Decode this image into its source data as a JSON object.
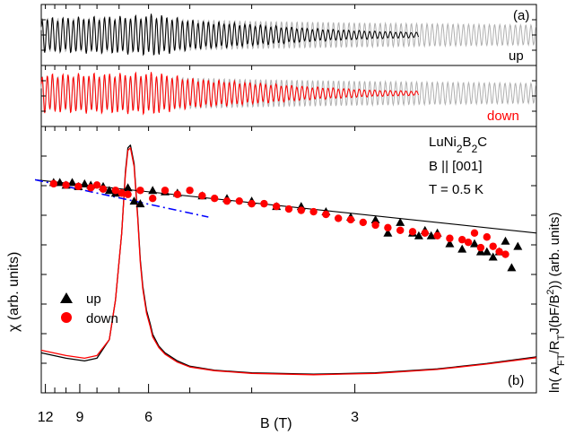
{
  "panel_a_label": "(a)",
  "panel_b_label": "(b)",
  "label_up": "up",
  "label_down": "down",
  "xlabel": "B (T)",
  "ylabel_left": "χ (arb. units)",
  "ylabel_right_html": "ln( A<tspan baseline-shift='sub' font-size='11'>FT</tspan>/R<tspan baseline-shift='sub' font-size='11'>T</tspan>J(bF/B<tspan baseline-shift='super' font-size='11'>2</tspan>)) (arb. units)",
  "annotation_material_html": "LuNi<tspan baseline-shift='sub' font-size='12'>2</tspan>B<tspan baseline-shift='sub' font-size='12'>2</tspan>C",
  "annotation_field": "B || [001]",
  "annotation_temp": "T = 0.5 K",
  "legend": [
    {
      "label": "up",
      "marker": "triangle",
      "color": "#000000"
    },
    {
      "label": "down",
      "marker": "circle",
      "color": "#ff0000"
    }
  ],
  "colors": {
    "up": "#000000",
    "down": "#ff0000",
    "reference": "#b0b0b0",
    "fit_dashdot": "#0000ff"
  },
  "chart_data": [
    {
      "type": "line",
      "panel": "a",
      "description_tag": "oscillation up",
      "series": [
        {
          "name": "up",
          "x_invB_start": 0.08,
          "x_invB_end": 0.385,
          "envelope": [
            [
              0.08,
              0.8
            ],
            [
              0.16,
              0.9
            ],
            [
              0.17,
              1.0
            ],
            [
              0.2,
              0.7
            ],
            [
              0.25,
              0.5
            ],
            [
              0.3,
              0.3
            ],
            [
              0.35,
              0.18
            ],
            [
              0.385,
              0.12
            ]
          ]
        },
        {
          "name": "reference",
          "x_invB_start": 0.08,
          "x_invB_end": 0.48,
          "envelope": [
            [
              0.08,
              0.85
            ],
            [
              0.16,
              0.85
            ],
            [
              0.25,
              0.7
            ],
            [
              0.35,
              0.6
            ],
            [
              0.48,
              0.5
            ]
          ]
        }
      ]
    },
    {
      "type": "line",
      "panel": "a-down",
      "series": [
        {
          "name": "down",
          "x_invB_start": 0.08,
          "x_invB_end": 0.385,
          "envelope": [
            [
              0.08,
              0.9
            ],
            [
              0.16,
              0.95
            ],
            [
              0.17,
              1.0
            ],
            [
              0.2,
              0.7
            ],
            [
              0.25,
              0.5
            ],
            [
              0.3,
              0.3
            ],
            [
              0.35,
              0.15
            ],
            [
              0.385,
              0.1
            ]
          ]
        },
        {
          "name": "reference",
          "x_invB_start": 0.08,
          "x_invB_end": 0.48,
          "envelope": [
            [
              0.08,
              0.85
            ],
            [
              0.16,
              0.85
            ],
            [
              0.25,
              0.7
            ],
            [
              0.35,
              0.6
            ],
            [
              0.48,
              0.5
            ]
          ]
        }
      ]
    },
    {
      "type": "line",
      "panel": "b",
      "xlabel": "B (T)",
      "ylabel": "χ (arb. units)",
      "x_axis": "1/B, reversed, tick labels in B (T)",
      "xlim_invB": [
        0.08,
        0.48
      ],
      "xticks_labeled": [
        12,
        9,
        6,
        3
      ],
      "xticks_minor": [
        11,
        10,
        8,
        7,
        5,
        4
      ],
      "ylim": [
        0,
        1
      ],
      "series": [
        {
          "name": "up",
          "x_invB": [
            0.08,
            0.1,
            0.115,
            0.125,
            0.135,
            0.14,
            0.145,
            0.148,
            0.15,
            0.152,
            0.155,
            0.158,
            0.16,
            0.162,
            0.165,
            0.168,
            0.17,
            0.175,
            0.18,
            0.19,
            0.2,
            0.22,
            0.25,
            0.3,
            0.35,
            0.4,
            0.44,
            0.48
          ],
          "y": [
            0.15,
            0.13,
            0.12,
            0.13,
            0.2,
            0.35,
            0.6,
            0.83,
            0.92,
            0.93,
            0.86,
            0.66,
            0.5,
            0.4,
            0.31,
            0.26,
            0.22,
            0.175,
            0.15,
            0.12,
            0.1,
            0.085,
            0.075,
            0.07,
            0.075,
            0.09,
            0.11,
            0.135
          ]
        },
        {
          "name": "down",
          "x_invB": [
            0.08,
            0.1,
            0.115,
            0.125,
            0.135,
            0.14,
            0.145,
            0.148,
            0.15,
            0.152,
            0.155,
            0.158,
            0.16,
            0.162,
            0.165,
            0.168,
            0.17,
            0.175,
            0.18,
            0.19,
            0.2,
            0.22,
            0.25,
            0.3,
            0.35,
            0.4,
            0.44,
            0.48
          ],
          "y": [
            0.16,
            0.14,
            0.13,
            0.14,
            0.2,
            0.35,
            0.6,
            0.82,
            0.91,
            0.92,
            0.85,
            0.65,
            0.49,
            0.39,
            0.3,
            0.25,
            0.21,
            0.17,
            0.145,
            0.115,
            0.097,
            0.083,
            0.073,
            0.068,
            0.073,
            0.088,
            0.108,
            0.132
          ]
        }
      ]
    },
    {
      "type": "scatter",
      "panel": "b-right-axis",
      "ylabel": "ln( AFT/RTJ(bF/B2)) (arb. units)",
      "ylim": [
        0,
        1
      ],
      "series": [
        {
          "name": "up",
          "marker": "triangle",
          "color": "#000000",
          "x_invB": [
            0.09,
            0.095,
            0.1,
            0.105,
            0.11,
            0.115,
            0.12,
            0.13,
            0.135,
            0.14,
            0.15,
            0.155,
            0.16,
            0.17,
            0.18,
            0.19,
            0.21,
            0.23,
            0.25,
            0.27,
            0.29,
            0.31,
            0.33,
            0.35,
            0.36,
            0.37,
            0.38,
            0.385,
            0.39,
            0.395,
            0.4,
            0.41,
            0.42,
            0.43,
            0.435,
            0.44,
            0.445,
            0.45,
            0.455,
            0.46,
            0.465
          ],
          "y": [
            0.79,
            0.79,
            0.78,
            0.79,
            0.775,
            0.785,
            0.78,
            0.775,
            0.76,
            0.75,
            0.77,
            0.72,
            0.71,
            0.76,
            0.755,
            0.75,
            0.74,
            0.73,
            0.72,
            0.7,
            0.7,
            0.68,
            0.66,
            0.65,
            0.6,
            0.64,
            0.6,
            0.59,
            0.61,
            0.59,
            0.6,
            0.56,
            0.54,
            0.56,
            0.53,
            0.53,
            0.51,
            0.53,
            0.57,
            0.47,
            0.55
          ]
        },
        {
          "name": "down",
          "marker": "circle",
          "color": "#ff0000",
          "x_invB": [
            0.09,
            0.1,
            0.11,
            0.12,
            0.125,
            0.13,
            0.14,
            0.145,
            0.15,
            0.16,
            0.17,
            0.18,
            0.19,
            0.2,
            0.21,
            0.22,
            0.23,
            0.24,
            0.25,
            0.26,
            0.27,
            0.28,
            0.29,
            0.3,
            0.31,
            0.32,
            0.33,
            0.34,
            0.35,
            0.36,
            0.37,
            0.38,
            0.39,
            0.4,
            0.41,
            0.42,
            0.425,
            0.43,
            0.435,
            0.44,
            0.445,
            0.45,
            0.455
          ],
          "y": [
            0.785,
            0.78,
            0.775,
            0.77,
            0.78,
            0.765,
            0.76,
            0.75,
            0.745,
            0.76,
            0.73,
            0.76,
            0.745,
            0.76,
            0.74,
            0.73,
            0.72,
            0.72,
            0.71,
            0.71,
            0.7,
            0.69,
            0.685,
            0.68,
            0.67,
            0.655,
            0.65,
            0.64,
            0.63,
            0.62,
            0.61,
            0.605,
            0.6,
            0.59,
            0.58,
            0.575,
            0.565,
            0.6,
            0.545,
            0.585,
            0.55,
            0.53,
            0.52
          ]
        }
      ],
      "lines": [
        {
          "name": "solid fit",
          "x_invB": [
            0.075,
            0.48
          ],
          "y": [
            0.8,
            0.6
          ],
          "color": "#000000"
        },
        {
          "name": "dash-dot fit",
          "x_invB": [
            0.075,
            0.215
          ],
          "y": [
            0.8,
            0.66
          ],
          "color": "#0000ff"
        }
      ]
    }
  ]
}
